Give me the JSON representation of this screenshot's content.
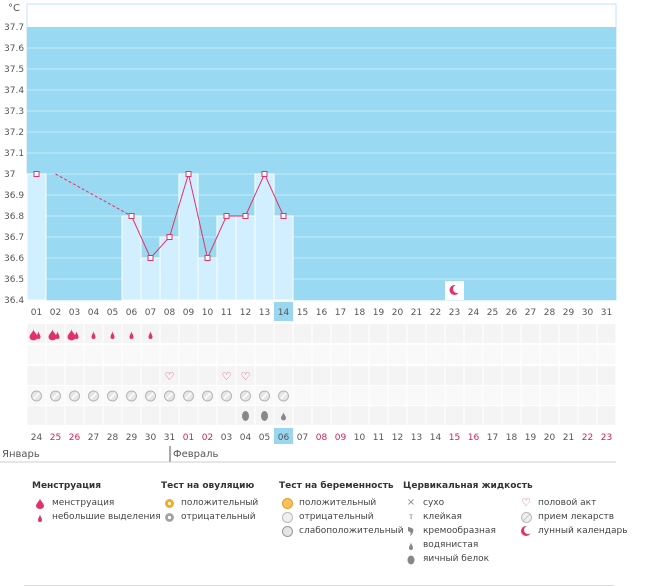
{
  "chart_data": {
    "type": "line",
    "unit_label": "°C",
    "y_ticks": [
      "37.7",
      "37.6",
      "37.5",
      "37.4",
      "37.3",
      "37.2",
      "37.1",
      "37",
      "36.9",
      "36.8",
      "36.7",
      "36.6",
      "36.5",
      "36.4"
    ],
    "ylim": [
      36.4,
      37.7
    ],
    "x_days": [
      "01",
      "02",
      "03",
      "04",
      "05",
      "06",
      "07",
      "08",
      "09",
      "10",
      "11",
      "12",
      "13",
      "14",
      "15",
      "16",
      "17",
      "18",
      "19",
      "20",
      "21",
      "22",
      "23",
      "24",
      "25",
      "26",
      "27",
      "28",
      "29",
      "30",
      "31"
    ],
    "highlight_day": "14",
    "temperatures": [
      37.0,
      null,
      null,
      null,
      null,
      36.8,
      36.6,
      36.7,
      37.0,
      36.6,
      36.8,
      36.8,
      37.0,
      36.8,
      null,
      null,
      null,
      null,
      null,
      null,
      null,
      null,
      null,
      null,
      null,
      null,
      null,
      null,
      null,
      null,
      null
    ],
    "interpolated_segment": {
      "from": "01",
      "to": "06"
    },
    "moon_day": "23",
    "rows": {
      "menstruation": [
        "heavy",
        "heavy",
        "heavy",
        "light",
        "light",
        "light",
        "light"
      ],
      "intercourse_days": [
        "08",
        "11",
        "12"
      ],
      "medication_days": [
        "01",
        "02",
        "03",
        "04",
        "05",
        "06",
        "07",
        "08",
        "09",
        "10",
        "11",
        "12",
        "13",
        "14"
      ],
      "mucus": {
        "12": "egg-white",
        "13": "egg-white",
        "14": "watery"
      }
    },
    "calendar_dates": [
      {
        "d": "24",
        "red": false
      },
      {
        "d": "25",
        "red": true
      },
      {
        "d": "26",
        "red": true
      },
      {
        "d": "27",
        "red": false
      },
      {
        "d": "28",
        "red": false
      },
      {
        "d": "29",
        "red": false
      },
      {
        "d": "30",
        "red": false
      },
      {
        "d": "31",
        "red": false
      },
      {
        "d": "01",
        "red": true
      },
      {
        "d": "02",
        "red": true
      },
      {
        "d": "03",
        "red": false
      },
      {
        "d": "04",
        "red": false
      },
      {
        "d": "05",
        "red": false
      },
      {
        "d": "06",
        "red": false
      },
      {
        "d": "07",
        "red": false
      },
      {
        "d": "08",
        "red": true
      },
      {
        "d": "09",
        "red": true
      },
      {
        "d": "10",
        "red": false
      },
      {
        "d": "11",
        "red": false
      },
      {
        "d": "12",
        "red": false
      },
      {
        "d": "13",
        "red": false
      },
      {
        "d": "14",
        "red": false
      },
      {
        "d": "15",
        "red": true
      },
      {
        "d": "16",
        "red": true
      },
      {
        "d": "17",
        "red": false
      },
      {
        "d": "18",
        "red": false
      },
      {
        "d": "19",
        "red": false
      },
      {
        "d": "20",
        "red": false
      },
      {
        "d": "21",
        "red": false
      },
      {
        "d": "22",
        "red": true
      },
      {
        "d": "23",
        "red": true
      }
    ],
    "months": [
      "Январь",
      "Февраль"
    ],
    "month_break_index": 8,
    "colors": {
      "plot_bg": "#99d9f2",
      "bar": "#d2efff",
      "bar_edge": "#ffffff",
      "line": "#e0336b",
      "highlight": "#9ad6f0",
      "grid_row_a": "#f4f4f4",
      "grid_row_b": "#f9f9f9"
    }
  },
  "legend": {
    "menstruation": {
      "title": "Менструация",
      "items": [
        "менструация",
        "небольшие выделения"
      ]
    },
    "ovulation_test": {
      "title": "Тест на овуляцию",
      "items": [
        "положительный",
        "отрицательный"
      ]
    },
    "pregnancy_test": {
      "title": "Тест на беременность",
      "items": [
        "положительный",
        "отрицательный",
        "слабоположительный"
      ]
    },
    "cervical": {
      "title": "Цервикальная жидкость",
      "items": [
        "сухо",
        "клейкая",
        "кремообразная",
        "водянистая",
        "яичный белок"
      ]
    },
    "other": {
      "items": [
        "половой акт",
        "прием лекарств",
        "лунный календарь"
      ]
    }
  }
}
